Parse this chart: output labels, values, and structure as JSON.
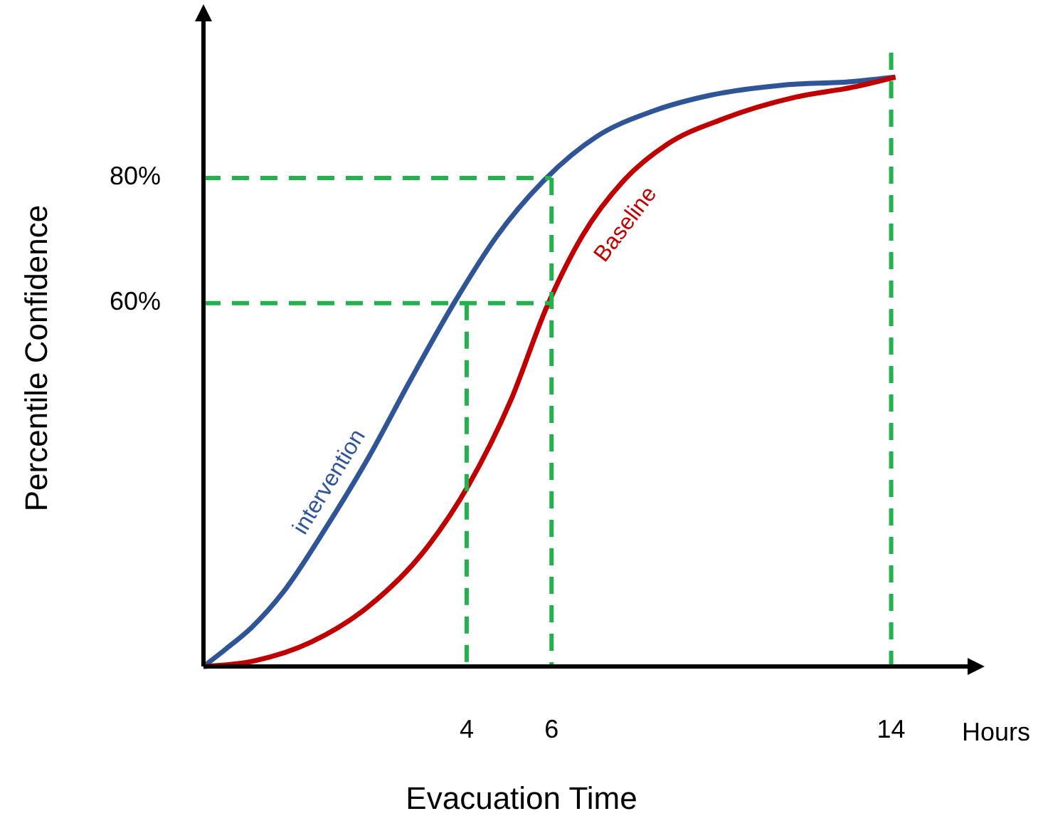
{
  "chart_data": {
    "type": "line",
    "xlabel": "Evacuation Time",
    "ylabel": "Percentile Confidence",
    "annotations": [
      "Hours"
    ],
    "xlim": [
      -2.2,
      15.8
    ],
    "ylim": [
      2,
      105
    ],
    "xticks": [
      4,
      6,
      14
    ],
    "yticks": [
      {
        "value": 60,
        "label": "60%"
      },
      {
        "value": 80,
        "label": "80%"
      }
    ],
    "grid": false,
    "series": [
      {
        "name": "intervention",
        "color": "#2f5597",
        "x": [
          -2.2,
          -1.67,
          -1.07,
          -0.33,
          0.68,
          1.69,
          2.69,
          3.7,
          4.71,
          5.88,
          7.06,
          8.4,
          9.74,
          11.42,
          13.1,
          14.1
        ],
        "values": [
          2,
          4.8,
          8.2,
          13.8,
          24.1,
          35.4,
          47.9,
          60,
          70.7,
          80,
          86.6,
          90.7,
          93.2,
          94.8,
          95.4,
          96.1
        ]
      },
      {
        "name": "Baseline",
        "color": "#c00000",
        "x": [
          -2.2,
          -1.0,
          0.34,
          1.69,
          3.03,
          4.04,
          5.04,
          5.88,
          6.72,
          7.73,
          8.73,
          10.07,
          11.75,
          13.1,
          14.1
        ],
        "values": [
          2,
          2.9,
          5.9,
          11.6,
          20.7,
          30.9,
          44.5,
          59.3,
          70.7,
          79.8,
          85.4,
          89.5,
          92.9,
          94.5,
          96.1
        ]
      },
      {
        "color": "#22b14c",
        "line_style": "dashed",
        "x": [
          -2.2,
          6
        ],
        "values": [
          80,
          80
        ]
      },
      {
        "color": "#22b14c",
        "line_style": "dashed",
        "x": [
          -2.2,
          6
        ],
        "values": [
          60,
          60
        ]
      },
      {
        "color": "#22b14c",
        "line_style": "dashed",
        "x": [
          4,
          4
        ],
        "values": [
          60,
          2
        ]
      },
      {
        "color": "#22b14c",
        "line_style": "dashed",
        "x": [
          6,
          6
        ],
        "values": [
          80,
          2
        ]
      },
      {
        "color": "#22b14c",
        "line_style": "dashed",
        "x": [
          14,
          14
        ],
        "values": [
          100,
          2
        ]
      }
    ]
  }
}
